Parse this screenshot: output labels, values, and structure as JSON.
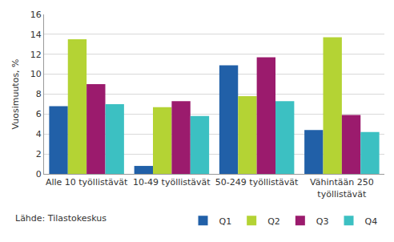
{
  "chart_data": {
    "type": "bar",
    "y_label": "Vuosimuutos, %",
    "annotations": [
      "Lähde: Tilastokeskus"
    ],
    "categories": [
      "Alle 10 työllistävät",
      "10-49 työllistävät",
      "50-249 työllistävät",
      "Vähintään 250 työllistävät"
    ],
    "series": [
      {
        "name": "Q1",
        "color": "#2160a8",
        "values": [
          6.8,
          0.8,
          10.9,
          4.4
        ]
      },
      {
        "name": "Q2",
        "color": "#b4d334",
        "values": [
          13.5,
          6.7,
          7.8,
          13.7
        ]
      },
      {
        "name": "Q3",
        "color": "#9b1b6d",
        "values": [
          9.0,
          7.3,
          11.7,
          5.9
        ]
      },
      {
        "name": "Q4",
        "color": "#3cc0c2",
        "values": [
          7.0,
          5.8,
          7.3,
          4.2
        ]
      }
    ],
    "ylim": [
      0,
      16
    ],
    "yticks": [
      0,
      2,
      4,
      6,
      8,
      10,
      12,
      14,
      16
    ],
    "grid": true,
    "legend": "bottom"
  }
}
